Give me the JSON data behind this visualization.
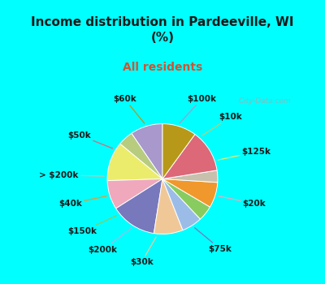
{
  "title": "Income distribution in Pardeeville, WI\n(%)",
  "subtitle": "All residents",
  "title_color": "#1a1a1a",
  "subtitle_color": "#cc5533",
  "bg_top": "#00ffff",
  "bg_chart_color": "#c8e8d8",
  "labels": [
    "$100k",
    "$10k",
    "$125k",
    "$20k",
    "$75k",
    "$30k",
    "$200k",
    "$150k",
    "$40k",
    "> $200k",
    "$50k",
    "$60k"
  ],
  "values": [
    9.5,
    4.5,
    11.5,
    8.5,
    13.5,
    8.5,
    6.0,
    4.5,
    7.5,
    3.5,
    12.5,
    10.0
  ],
  "colors": [
    "#a898cc",
    "#b8cc80",
    "#ecec6c",
    "#f0a8bc",
    "#7878bc",
    "#f0c898",
    "#9cbce8",
    "#88cc60",
    "#f0982c",
    "#c8c0ac",
    "#dc6878",
    "#b89818"
  ],
  "startangle": 90,
  "label_fontsize": 7.5,
  "watermark": "  City-Data.com"
}
